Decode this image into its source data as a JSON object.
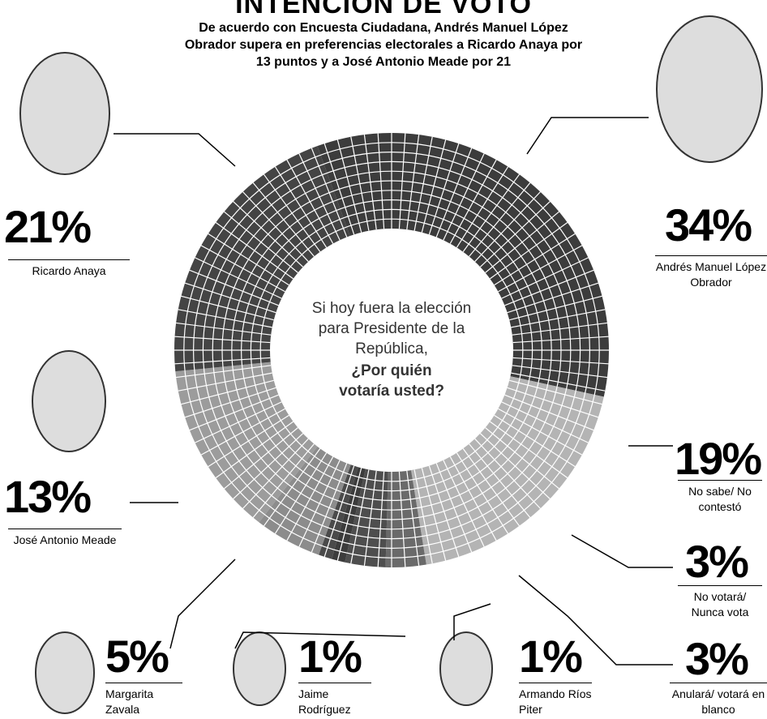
{
  "chart_data": {
    "type": "pie",
    "title": "INTENCIÓN DE VOTO",
    "subtitle": "De acuerdo con Encuesta Ciudadana, Andrés Manuel López Obrador supera en preferencias electorales a Ricardo Anaya por 13 puntos y a José Antonio Meade por 21",
    "center_question": "Si hoy fuera la elección para Presidente de la República,",
    "center_question_bold": "¿Por quién votaría usted?",
    "categories": [
      "Andrés Manuel López Obrador",
      "No sabe/ No contestó",
      "No votará/ Nunca vota",
      "Anulará/ votará en blanco",
      "Armando Ríos Piter",
      "Jaime Rodríguez",
      "Margarita Zavala",
      "José Antonio Meade",
      "Ricardo Anaya"
    ],
    "values": [
      34,
      19,
      3,
      3,
      1,
      1,
      5,
      13,
      21
    ],
    "value_labels": [
      "34%",
      "19%",
      "3%",
      "3%",
      "1%",
      "1%",
      "5%",
      "13%",
      "21%"
    ],
    "colors": [
      "#3c3c3c",
      "#b4b4b4",
      "#6a6a6a",
      "#4e4e4e",
      "#3c3c3c",
      "#4a4a4a",
      "#8c8c8c",
      "#9c9c9c",
      "#444444"
    ]
  }
}
